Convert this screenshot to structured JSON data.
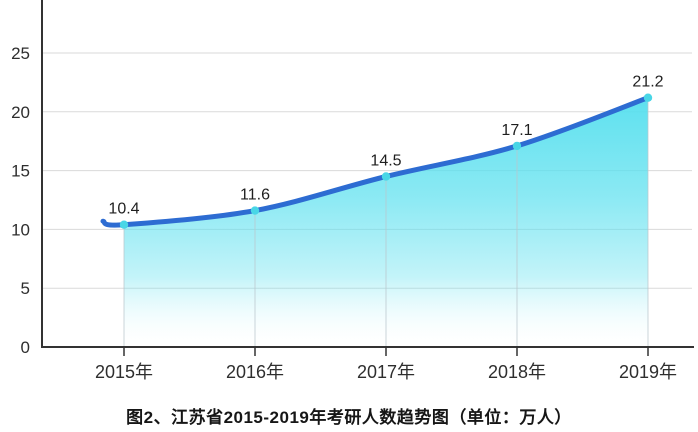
{
  "chart_data": {
    "type": "area",
    "title": "图2、江苏省2015-2019年考研人数趋势图（单位：万人）",
    "categories": [
      "2015年",
      "2016年",
      "2017年",
      "2018年",
      "2019年"
    ],
    "values": [
      10.4,
      11.6,
      14.5,
      17.1,
      21.2
    ],
    "value_labels": [
      "10.4",
      "11.6",
      "14.5",
      "17.1",
      "21.2"
    ],
    "series_name": "考研人数",
    "unit": "万人",
    "xlabel": "",
    "ylabel": "",
    "ylim": [
      0,
      29.5
    ],
    "yticks": [
      0,
      5,
      10,
      15,
      20,
      25
    ],
    "ytick_labels": [
      "0",
      "5",
      "10",
      "15",
      "20",
      "25"
    ],
    "grid": "horizontal gridlines on, vertical guide under each point",
    "legend": "none",
    "colors": {
      "line": "#2d6cd2",
      "marker": "#49d6e6",
      "area_top": "#55dfee",
      "area_bottom": "#ffffff",
      "gridline": "#dadada",
      "axis": "#333333",
      "text": "#2e2e2e"
    }
  }
}
